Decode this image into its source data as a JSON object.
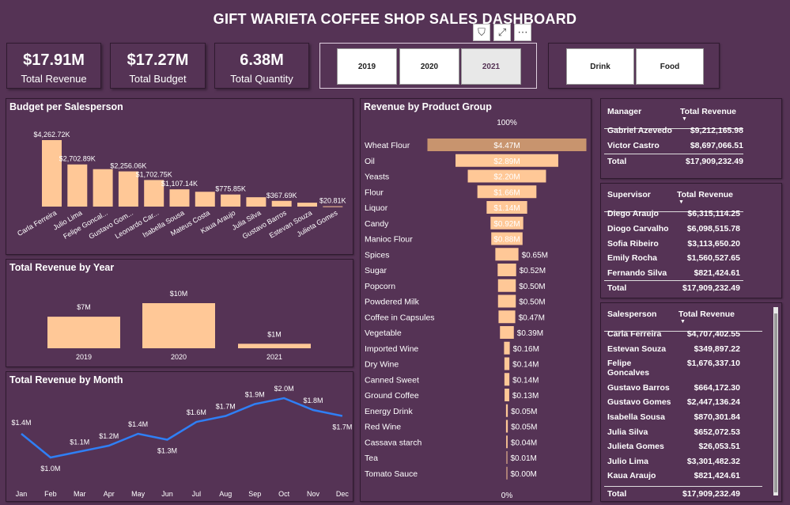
{
  "title": "GIFT WARIETA COFFEE SHOP SALES DASHBOARD",
  "header_icons": [
    {
      "name": "filter-icon",
      "glyph": "⛉"
    },
    {
      "name": "focus-mode-icon",
      "glyph": "⤢"
    },
    {
      "name": "more-options-icon",
      "glyph": "⋯"
    }
  ],
  "kpis": [
    {
      "value": "$17.91M",
      "label": "Total Revenue"
    },
    {
      "value": "$17.27M",
      "label": "Total Budget"
    },
    {
      "value": "6.38M",
      "label": "Total Quantity"
    }
  ],
  "year_slicer": [
    {
      "label": "2019",
      "selected": false
    },
    {
      "label": "2020",
      "selected": false
    },
    {
      "label": "2021",
      "selected": true
    }
  ],
  "group_slicer": [
    {
      "label": "Drink",
      "selected": false
    },
    {
      "label": "Food",
      "selected": false
    }
  ],
  "colors": {
    "background": "#553355",
    "bar": "#ffc897",
    "funnel_dark": "#c8946e",
    "line": "#2f7ff5"
  },
  "charts": {
    "budget": {
      "title": "Budget per Salesperson",
      "chart_data": {
        "type": "bar",
        "categories": [
          "Carla Ferreira",
          "Julio Lima",
          "Felipe Goncal...",
          "Gustavo Gom...",
          "Leonardo Car...",
          "Isabella Sousa",
          "Mateus Costa",
          "Kaua Araujo",
          "Julia Silva",
          "Gustavo Barros",
          "Estevan Souza",
          "Julieta Gomes"
        ],
        "values": [
          4262.72,
          2702.89,
          2400,
          2256.06,
          1702.75,
          1107.14,
          950,
          775.85,
          600,
          367.69,
          250,
          20.81
        ],
        "labels": [
          "$4,262.72K",
          "$2,702.89K",
          "",
          "$2,256.06K",
          "$1,702.75K",
          "$1,107.14K",
          "",
          "$775.85K",
          "",
          "$367.69K",
          "",
          "$20.81K"
        ]
      }
    },
    "year": {
      "title": "Total Revenue by Year",
      "chart_data": {
        "type": "bar",
        "categories": [
          "2019",
          "2020",
          "2021"
        ],
        "values": [
          7,
          10,
          1
        ],
        "labels": [
          "$7M",
          "$10M",
          "$1M"
        ]
      }
    },
    "month": {
      "title": "Total Revenue by Month",
      "chart_data": {
        "type": "line",
        "categories": [
          "Jan",
          "Feb",
          "Mar",
          "Apr",
          "May",
          "Jun",
          "Jul",
          "Aug",
          "Sep",
          "Oct",
          "Nov",
          "Dec"
        ],
        "values": [
          1.4,
          1.0,
          1.1,
          1.2,
          1.4,
          1.3,
          1.6,
          1.7,
          1.9,
          2.0,
          1.8,
          1.7
        ],
        "labels": [
          "$1.4M",
          "$1.0M",
          "$1.1M",
          "$1.2M",
          "$1.4M",
          "$1.3M",
          "$1.6M",
          "$1.7M",
          "$1.9M",
          "$2.0M",
          "$1.8M",
          "$1.7M"
        ]
      }
    },
    "product": {
      "title": "Revenue by Product Group",
      "top_label": "100%",
      "bottom_label": "0%",
      "chart_data": {
        "type": "bar",
        "categories": [
          "Wheat Flour",
          "Oil",
          "Yeasts",
          "Flour",
          "Liquor",
          "Candy",
          "Manioc Flour",
          "Spices",
          "Sugar",
          "Popcorn",
          "Powdered Milk",
          "Coffee in Capsules",
          "Vegetable",
          "Imported Wine",
          "Dry Wine",
          "Canned Sweet",
          "Ground Coffee",
          "Energy Drink",
          "Red Wine",
          "Cassava starch",
          "Tea",
          "Tomato Sauce"
        ],
        "values": [
          4.47,
          2.89,
          2.2,
          1.66,
          1.14,
          0.92,
          0.88,
          0.65,
          0.52,
          0.5,
          0.5,
          0.47,
          0.39,
          0.16,
          0.14,
          0.14,
          0.13,
          0.05,
          0.05,
          0.04,
          0.01,
          0.0
        ],
        "labels": [
          "$4.47M",
          "$2.89M",
          "$2.20M",
          "$1.66M",
          "$1.14M",
          "$0.92M",
          "$0.88M",
          "$0.65M",
          "$0.52M",
          "$0.50M",
          "$0.50M",
          "$0.47M",
          "$0.39M",
          "$0.16M",
          "$0.14M",
          "$0.14M",
          "$0.13M",
          "$0.05M",
          "$0.05M",
          "$0.04M",
          "$0.01M",
          "$0.00M"
        ]
      }
    }
  },
  "tables": {
    "manager": {
      "headers": [
        "Manager",
        "Total Revenue"
      ],
      "rows": [
        [
          "Gabriel Azevedo",
          "$9,212,165.98"
        ],
        [
          "Victor Castro",
          "$8,697,066.51"
        ]
      ],
      "total": [
        "Total",
        "$17,909,232.49"
      ]
    },
    "supervisor": {
      "headers": [
        "Supervisor",
        "Total Revenue"
      ],
      "rows": [
        [
          "Diego Araujo",
          "$6,315,114.25"
        ],
        [
          "Diogo Carvalho",
          "$6,098,515.78"
        ],
        [
          "Sofia Ribeiro",
          "$3,113,650.20"
        ],
        [
          "Emily Rocha",
          "$1,560,527.65"
        ],
        [
          "Fernando Silva",
          "$821,424.61"
        ]
      ],
      "total": [
        "Total",
        "$17,909,232.49"
      ]
    },
    "salesperson": {
      "headers": [
        "Salesperson",
        "Total Revenue"
      ],
      "rows": [
        [
          "Carla Ferreira",
          "$4,707,402.55"
        ],
        [
          "Estevan Souza",
          "$349,897.22"
        ],
        [
          "Felipe Goncalves",
          "$1,676,337.10"
        ],
        [
          "Gustavo Barros",
          "$664,172.30"
        ],
        [
          "Gustavo Gomes",
          "$2,447,136.24"
        ],
        [
          "Isabella Sousa",
          "$870,301.84"
        ],
        [
          "Julia Silva",
          "$652,072.53"
        ],
        [
          "Julieta Gomes",
          "$26,053.51"
        ],
        [
          "Julio Lima",
          "$3,301,482.32"
        ],
        [
          "Kaua Araujo",
          "$821,424.61"
        ]
      ],
      "total": [
        "Total",
        "$17,909,232.49"
      ]
    }
  }
}
